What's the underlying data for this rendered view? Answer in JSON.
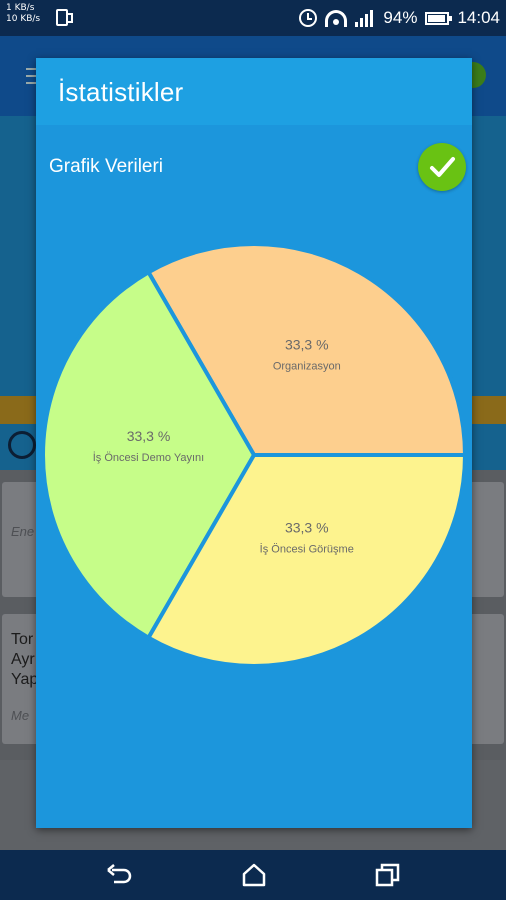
{
  "status_bar": {
    "net_up": "1 KB/s",
    "net_down": "10 KB/s",
    "battery": "94%",
    "time": "14:04"
  },
  "dialog": {
    "title": "İstatistikler",
    "section_label": "Grafik Verileri",
    "confirm_icon": "check-icon"
  },
  "chart_data": {
    "type": "pie",
    "slices": [
      {
        "label": "Organizasyon",
        "value": 33.3,
        "display": "33,3 %",
        "color": "#fdcf8e"
      },
      {
        "label": "İş Öncesi Demo Yayını",
        "value": 33.3,
        "display": "33,3 %",
        "color": "#c6fd89"
      },
      {
        "label": "İş Öncesi Görüşme",
        "value": 33.3,
        "display": "33,3 %",
        "color": "#fdf38e"
      }
    ],
    "legend": "none"
  },
  "background": {
    "card1_hint": "Ene",
    "card2_line1": "Tor",
    "card2_line2": "Ayr",
    "card2_line3": "Yap",
    "card2_hint": "Me"
  },
  "nav": {
    "back_icon": "back-icon",
    "home_icon": "home-icon",
    "recents_icon": "recents-icon"
  },
  "colors": {
    "dialog_bg": "#1c96dc",
    "header_bg": "#1ea0e2",
    "confirm_green": "#69c213",
    "status_bar": "#0c2a4f"
  }
}
